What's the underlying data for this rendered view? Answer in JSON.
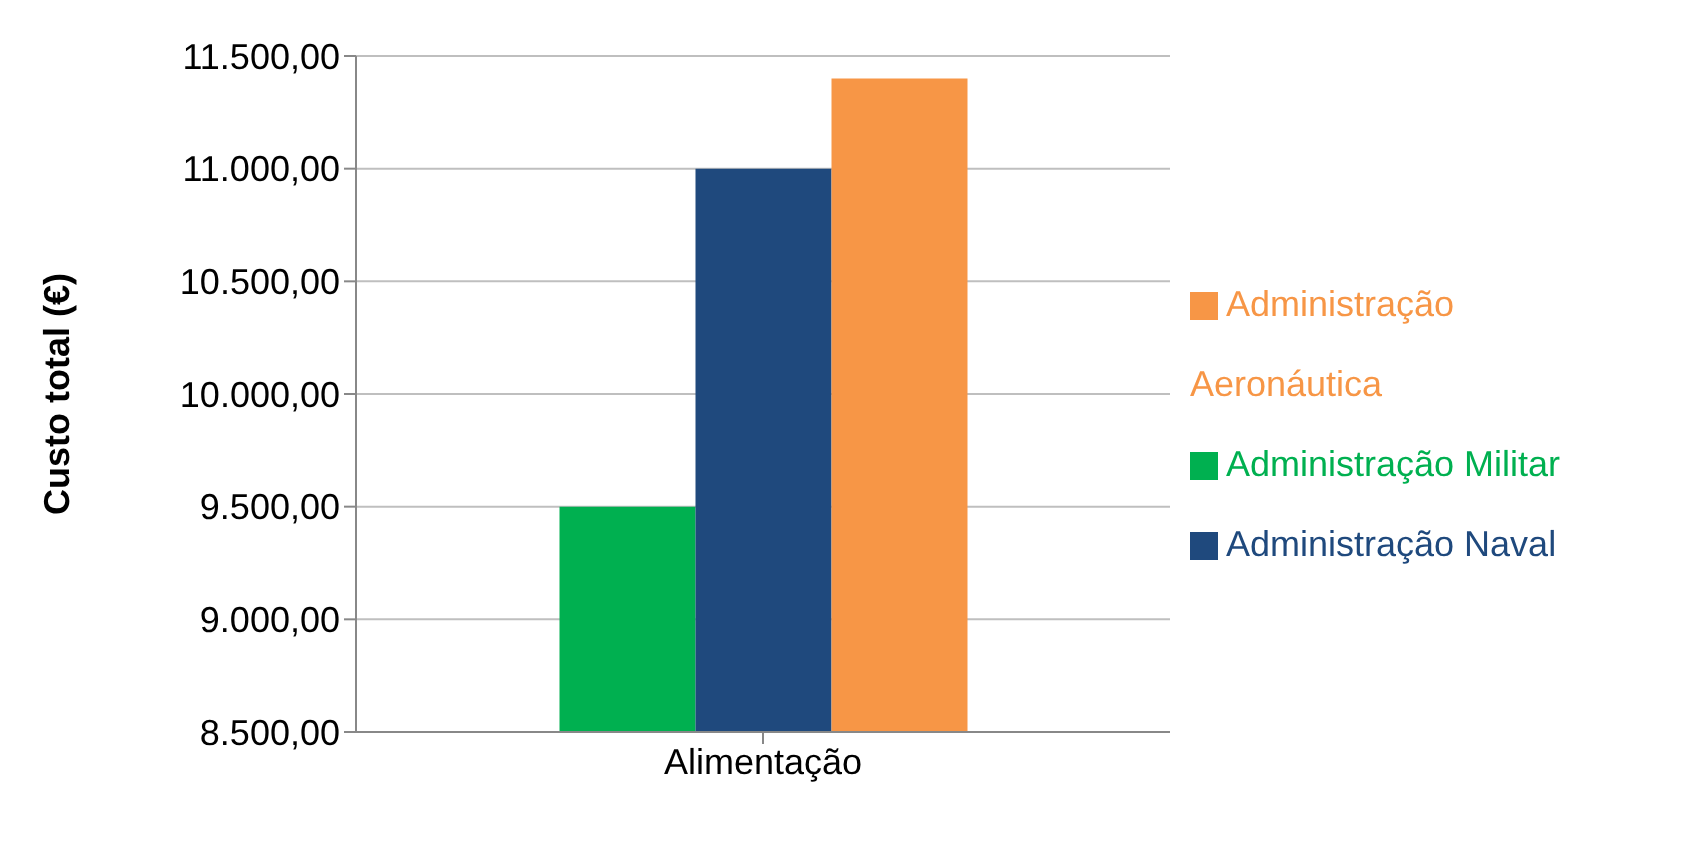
{
  "chart_data": {
    "type": "bar",
    "ylabel": "Custo total (€)",
    "categories": [
      "Alimentação"
    ],
    "series": [
      {
        "name": "Administração Militar",
        "color": "#00b050",
        "values": [
          9500
        ]
      },
      {
        "name": "Administração Naval",
        "color": "#1f497d",
        "values": [
          11000
        ]
      },
      {
        "name": "Administração Aeronáutica",
        "color": "#f79646",
        "values": [
          11400
        ]
      }
    ],
    "ylim": [
      8500,
      11500
    ],
    "yticks": [
      {
        "value": 8500,
        "label": "8.500,00"
      },
      {
        "value": 9000,
        "label": "9.000,00"
      },
      {
        "value": 9500,
        "label": "9.500,00"
      },
      {
        "value": 10000,
        "label": "10.000,00"
      },
      {
        "value": 10500,
        "label": "10.500,00"
      },
      {
        "value": 11000,
        "label": "11.000,00"
      },
      {
        "value": 11500,
        "label": "11.500,00"
      }
    ],
    "grid": "y",
    "legend": "right"
  }
}
